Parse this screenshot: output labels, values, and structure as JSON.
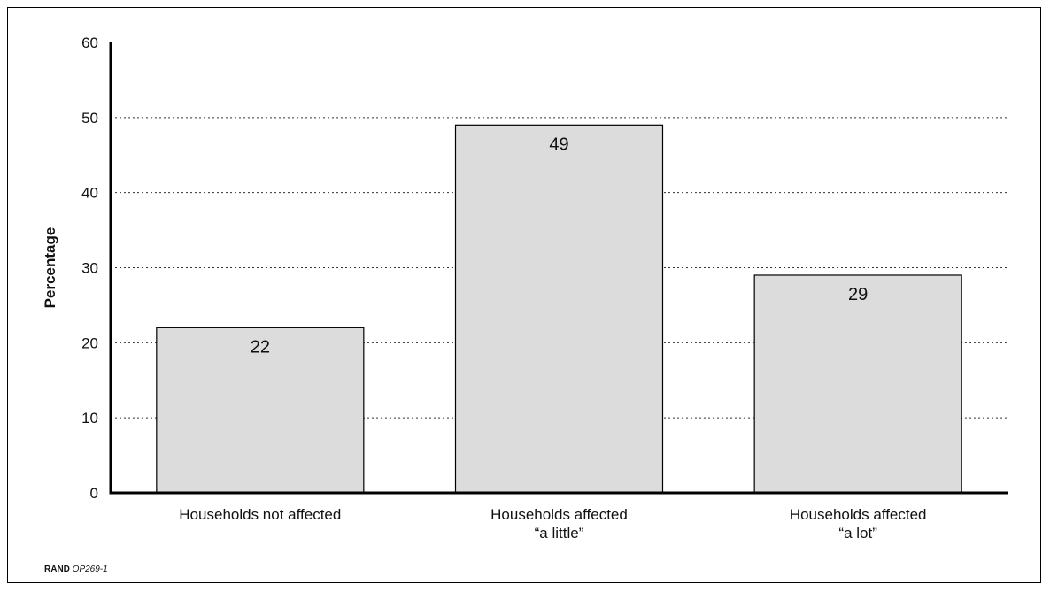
{
  "chart_data": {
    "type": "bar",
    "categories": [
      [
        "Households not affected"
      ],
      [
        "Households affected",
        "“a little”"
      ],
      [
        "Households affected",
        "“a lot”"
      ]
    ],
    "values": [
      22,
      49,
      29
    ],
    "data_labels": [
      "22",
      "49",
      "29"
    ],
    "ylabel": "Percentage",
    "ylim": [
      0,
      60
    ],
    "yticks": [
      0,
      10,
      20,
      30,
      40,
      50,
      60
    ],
    "grid": "horizontal-dotted",
    "bar_color": "#dcdcdc",
    "bar_edge_color": "#000000"
  },
  "footer": {
    "org": "RAND",
    "code": "OP269-1"
  }
}
